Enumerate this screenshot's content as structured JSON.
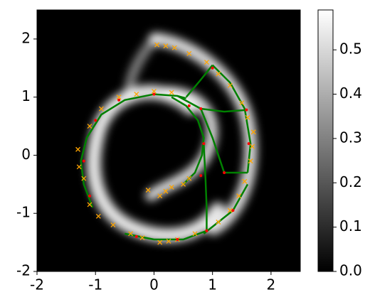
{
  "chart_data": {
    "type": "scatter",
    "xlim": [
      -2,
      2.5
    ],
    "ylim": [
      -2,
      2.5
    ],
    "xticks": [
      -2,
      -1,
      0,
      1,
      2
    ],
    "yticks": [
      -2,
      -1,
      0,
      1,
      2
    ],
    "colorbar": {
      "cmap": [
        "#000000",
        "#ffffff"
      ],
      "lim": [
        0,
        0.59
      ],
      "ticks": [
        {
          "value": 0,
          "label": "0.0"
        },
        {
          "value": 0.1,
          "label": "0.1"
        },
        {
          "value": 0.2,
          "label": "0.2"
        },
        {
          "value": 0.3,
          "label": "0.3"
        },
        {
          "value": 0.4,
          "label": "0.4"
        },
        {
          "value": 0.5,
          "label": "0.5"
        }
      ]
    },
    "lines": [
      {
        "color": "#008000",
        "x": [
          -1.05,
          -1.2,
          -1.25,
          -1.15,
          -0.9,
          -0.5,
          0.0,
          0.4,
          0.55
        ],
        "y": [
          -0.9,
          -0.5,
          -0.1,
          0.3,
          0.7,
          0.95,
          1.05,
          1.02,
          0.98
        ]
      },
      {
        "color": "#008000",
        "x": [
          0.5,
          0.7,
          0.82,
          0.85,
          0.75,
          0.55,
          0.3
        ],
        "y": [
          -0.5,
          -0.3,
          0.0,
          0.3,
          0.6,
          0.85,
          1.0
        ]
      },
      {
        "color": "#008000",
        "x": [
          0.4,
          0.8,
          1.2,
          1.6
        ],
        "y": [
          1.02,
          0.8,
          0.75,
          0.78
        ]
      },
      {
        "color": "#008000",
        "x": [
          0.55,
          0.8,
          1.0
        ],
        "y": [
          1.0,
          1.3,
          1.55
        ]
      },
      {
        "color": "#008000",
        "x": [
          0.8,
          1.0,
          1.2,
          1.6
        ],
        "y": [
          0.8,
          0.3,
          -0.3,
          -0.3
        ]
      },
      {
        "color": "#008000",
        "x": [
          0.85,
          1.35,
          1.6
        ],
        "y": [
          -1.35,
          -0.95,
          -0.5
        ]
      },
      {
        "color": "#008000",
        "x": [
          0.85,
          0.88,
          0.9,
          0.9
        ],
        "y": [
          0.2,
          -0.4,
          -0.9,
          -1.3
        ]
      },
      {
        "color": "#008000",
        "x": [
          -0.5,
          0.0,
          0.5,
          0.9
        ],
        "y": [
          -1.35,
          -1.45,
          -1.45,
          -1.3
        ]
      },
      {
        "color": "#008000",
        "x": [
          1.0,
          1.3,
          1.55,
          1.65,
          1.6
        ],
        "y": [
          1.55,
          1.25,
          0.8,
          0.2,
          -0.3
        ]
      }
    ],
    "series": [
      {
        "color": "#ffa500",
        "marker": "x",
        "x": [
          0.05,
          0.2,
          0.35,
          0.6,
          0.9,
          1.1,
          1.3,
          1.5,
          1.6,
          1.7,
          1.68,
          1.65,
          1.55,
          1.45,
          1.3,
          1.1,
          0.7,
          0.4,
          0.1,
          -0.2,
          -0.4,
          -0.7,
          -0.95,
          -1.1,
          -1.3,
          -1.28,
          -1.2,
          -1.1,
          -0.9,
          -0.6,
          -0.3,
          0.0,
          0.3,
          -0.1,
          0.1,
          0.2,
          0.3,
          0.5,
          0.6,
          0.25
        ],
        "y": [
          1.9,
          1.88,
          1.85,
          1.75,
          1.6,
          1.4,
          1.2,
          0.9,
          0.65,
          0.4,
          0.15,
          -0.1,
          -0.45,
          -0.7,
          -0.95,
          -1.15,
          -1.35,
          -1.45,
          -1.5,
          -1.42,
          -1.35,
          -1.2,
          -1.05,
          -0.85,
          0.1,
          -0.2,
          -0.4,
          0.5,
          0.8,
          1.0,
          1.05,
          1.1,
          1.08,
          -0.6,
          -0.7,
          -0.62,
          -0.55,
          -0.5,
          -0.4,
          -1.48
        ]
      },
      {
        "color": "#ff0000",
        "marker": "o",
        "x": [
          0.0,
          -0.6,
          -1.0,
          -1.2,
          -1.1,
          0.85,
          0.8,
          0.6,
          0.9,
          1.2,
          1.58,
          1.62,
          1.35,
          0.9,
          0.4,
          -0.3,
          0.8,
          1.0
        ],
        "y": [
          1.05,
          0.95,
          0.6,
          -0.1,
          -0.7,
          0.2,
          -0.35,
          0.85,
          -1.3,
          -0.3,
          0.78,
          0.2,
          -0.95,
          -1.3,
          -1.45,
          -1.4,
          0.8,
          1.5
        ]
      }
    ]
  }
}
